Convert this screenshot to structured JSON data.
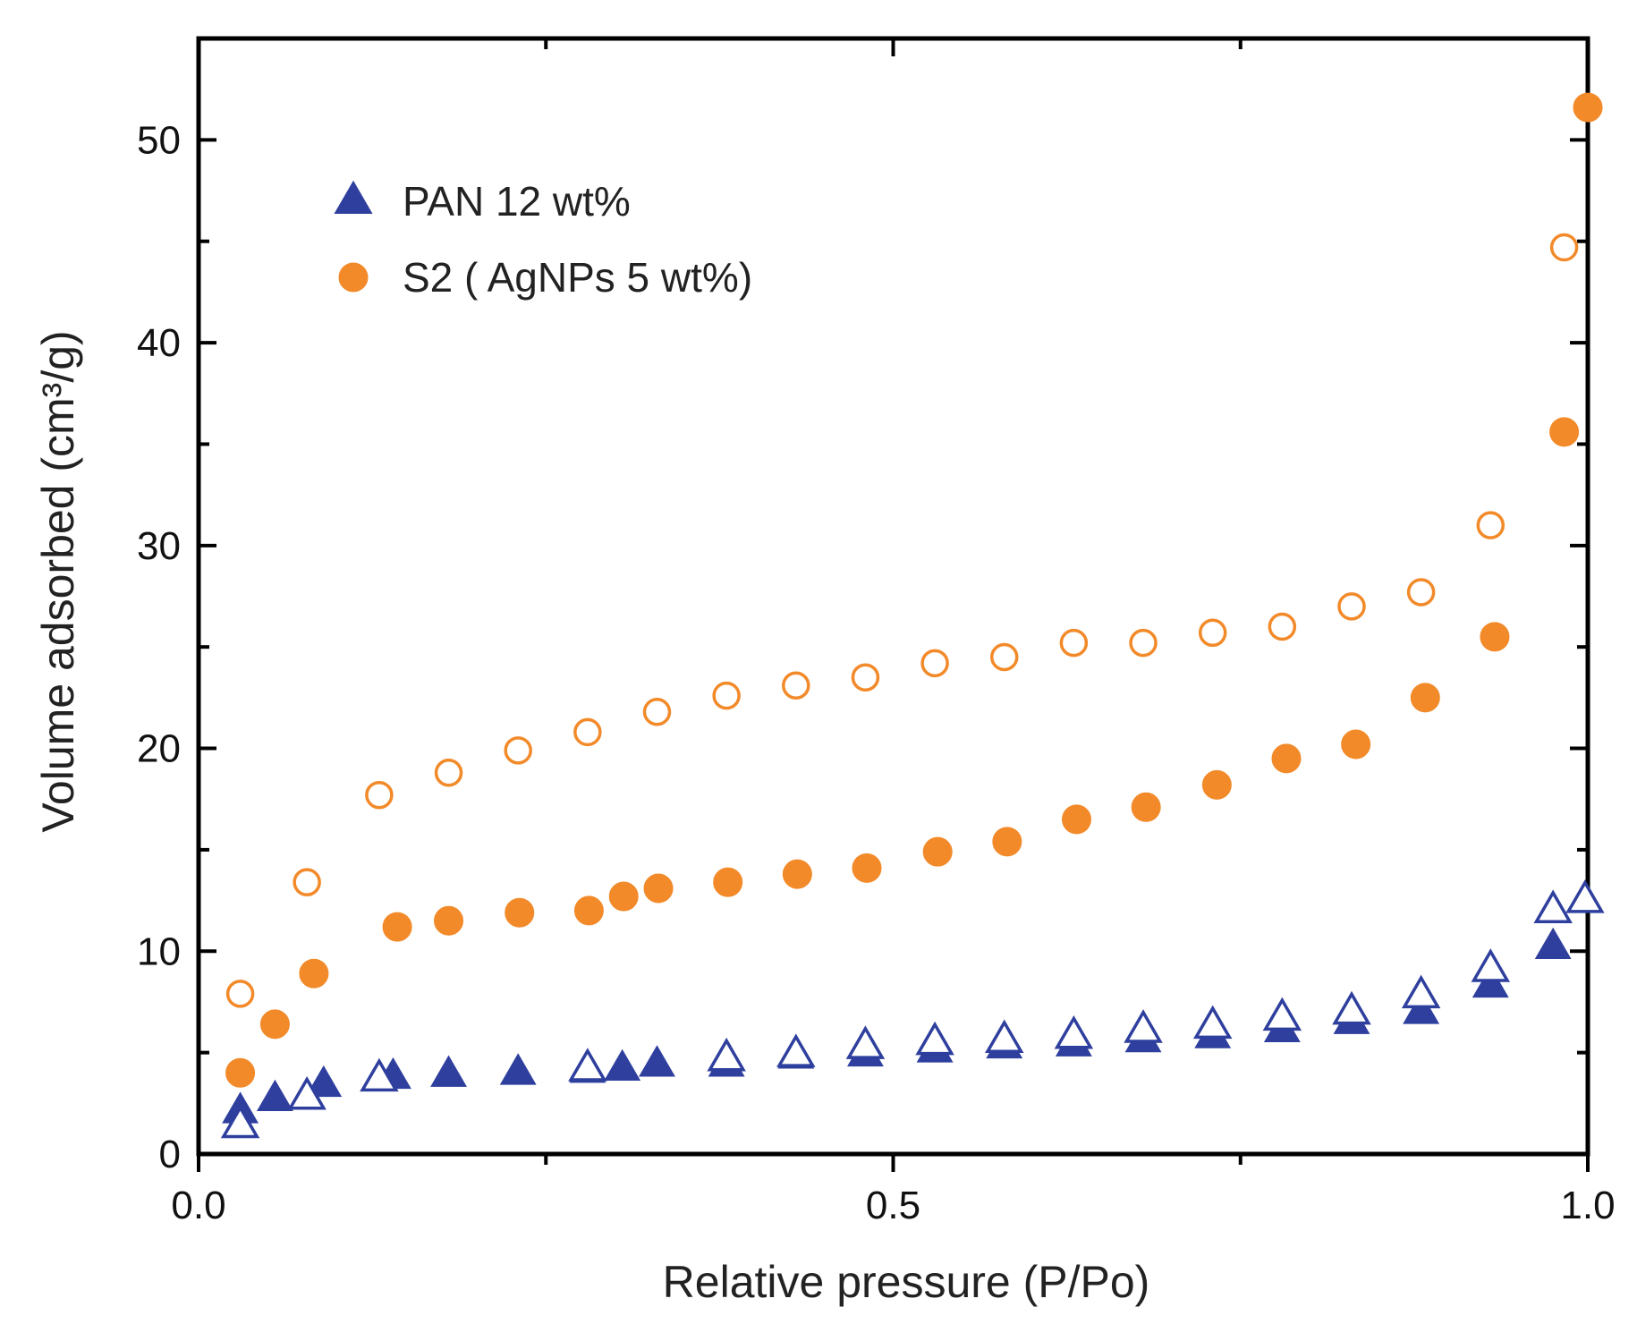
{
  "chart_data": {
    "type": "scatter",
    "title": "",
    "xlabel": "Relative pressure (P/Po)",
    "ylabel": "Volume adsorbed (cm³/g)",
    "xlim": [
      0.0,
      1.0
    ],
    "ylim": [
      0,
      55
    ],
    "x_ticks": [
      "0.0",
      "0.5",
      "1.0"
    ],
    "y_ticks": [
      "0",
      "10",
      "20",
      "30",
      "40",
      "50"
    ],
    "grid": false,
    "legend_position": "top-left",
    "colors": {
      "pan": "#2e3f9e",
      "s2": "#f28a2a",
      "axis": "#000000"
    },
    "legend": [
      {
        "label": "PAN 12 wt%",
        "marker": "triangle",
        "color": "#2e3f9e"
      },
      {
        "label": "S2 ( AgNPs 5 wt%)",
        "marker": "circle",
        "color": "#f28a2a"
      }
    ],
    "series": [
      {
        "name": "PAN 12 wt% adsorption",
        "marker": "triangle",
        "filled": true,
        "color": "#2e3f9e",
        "x": [
          0.03,
          0.055,
          0.09,
          0.14,
          0.18,
          0.23,
          0.28,
          0.305,
          0.33,
          0.38,
          0.43,
          0.48,
          0.53,
          0.58,
          0.63,
          0.68,
          0.73,
          0.78,
          0.83,
          0.88,
          0.93,
          0.975
        ],
        "y": [
          2.1,
          2.7,
          3.4,
          3.8,
          3.9,
          4.0,
          4.1,
          4.2,
          4.4,
          4.4,
          4.8,
          4.9,
          5.1,
          5.3,
          5.4,
          5.6,
          5.8,
          6.1,
          6.5,
          7.0,
          8.3,
          10.2
        ]
      },
      {
        "name": "PAN 12 wt% desorption",
        "marker": "triangle",
        "filled": false,
        "color": "#2e3f9e",
        "x": [
          0.03,
          0.078,
          0.13,
          0.28,
          0.38,
          0.43,
          0.48,
          0.53,
          0.58,
          0.63,
          0.68,
          0.73,
          0.78,
          0.83,
          0.88,
          0.93,
          0.975,
          0.998
        ],
        "y": [
          1.4,
          2.8,
          3.7,
          4.2,
          4.7,
          4.9,
          5.3,
          5.5,
          5.6,
          5.8,
          6.1,
          6.3,
          6.7,
          7.0,
          7.8,
          9.1,
          12.0,
          12.5
        ]
      },
      {
        "name": "S2 ( AgNPs 5 wt%) adsorption",
        "marker": "circle",
        "filled": true,
        "color": "#f28a2a",
        "x": [
          0.03,
          0.055,
          0.083,
          0.143,
          0.18,
          0.231,
          0.281,
          0.306,
          0.331,
          0.381,
          0.431,
          0.481,
          0.532,
          0.582,
          0.632,
          0.682,
          0.733,
          0.783,
          0.833,
          0.883,
          0.933,
          0.983,
          1.0
        ],
        "y": [
          4.0,
          6.4,
          8.9,
          11.2,
          11.5,
          11.9,
          12.0,
          12.7,
          13.1,
          13.4,
          13.8,
          14.1,
          14.9,
          15.4,
          16.5,
          17.1,
          18.2,
          19.5,
          20.2,
          22.5,
          25.5,
          35.6,
          51.6
        ]
      },
      {
        "name": "S2 ( AgNPs 5 wt%) desorption",
        "marker": "circle",
        "filled": false,
        "color": "#f28a2a",
        "x": [
          0.03,
          0.078,
          0.13,
          0.18,
          0.23,
          0.28,
          0.33,
          0.38,
          0.43,
          0.48,
          0.53,
          0.58,
          0.63,
          0.68,
          0.73,
          0.78,
          0.83,
          0.88,
          0.93,
          0.983
        ],
        "y": [
          7.9,
          13.4,
          17.7,
          18.8,
          19.9,
          20.8,
          21.8,
          22.6,
          23.1,
          23.5,
          24.2,
          24.5,
          25.2,
          25.2,
          25.7,
          26.0,
          27.0,
          27.7,
          31.0,
          44.7
        ]
      }
    ]
  }
}
